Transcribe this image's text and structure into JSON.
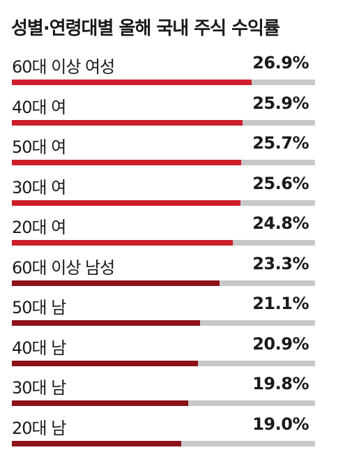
{
  "title": "성별·연령대별 올해 국내 주식 수익률",
  "colors": {
    "female": "#cc1f2b",
    "male": "#8b1218",
    "track": "#c8c8c8"
  },
  "chart_data": {
    "type": "bar",
    "orientation": "horizontal",
    "title": "성별·연령대별 올해 국내 주식 수익률",
    "xlim": [
      0,
      34
    ],
    "categories": [
      "60대 이상 여성",
      "40대 여",
      "50대 여",
      "30대 여",
      "20대 여",
      "60대 이상 남성",
      "50대 남",
      "40대 남",
      "30대 남",
      "20대 남"
    ],
    "values": [
      26.9,
      25.9,
      25.7,
      25.6,
      24.8,
      23.3,
      21.1,
      20.9,
      19.8,
      19.0
    ],
    "value_labels": [
      "26.9%",
      "25.9%",
      "25.7%",
      "25.6%",
      "24.8%",
      "23.3%",
      "21.1%",
      "20.9%",
      "19.8%",
      "19.0%"
    ],
    "groups": [
      "female",
      "female",
      "female",
      "female",
      "female",
      "male",
      "male",
      "male",
      "male",
      "male"
    ]
  }
}
